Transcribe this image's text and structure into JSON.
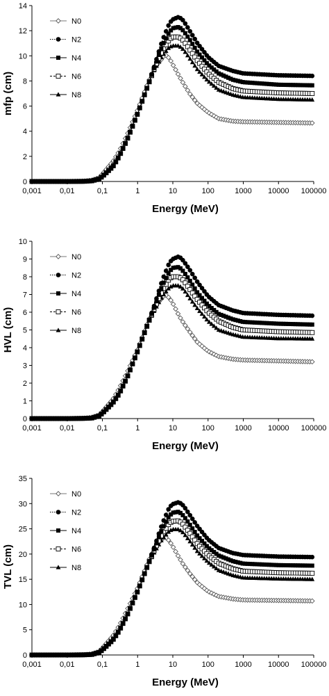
{
  "chart_data": [
    {
      "type": "scatter",
      "title": "",
      "xlabel": "Energy (MeV)",
      "ylabel": "mfp (cm)",
      "xscale": "log",
      "xlim": [
        0.001,
        100000
      ],
      "ylim": [
        0,
        14
      ],
      "xtick_labels": [
        "0,001",
        "0,01",
        "0,1",
        "1",
        "10",
        "100",
        "1000",
        "10000",
        "100000"
      ],
      "ytick_labels": [
        "0",
        "2",
        "4",
        "6",
        "8",
        "10",
        "12",
        "14"
      ],
      "yticks": [
        0,
        2,
        4,
        6,
        8,
        10,
        12,
        14
      ],
      "grid": false,
      "legend": "top-left",
      "series": [
        {
          "name": "N0",
          "marker": "open-diamond",
          "line": "solid",
          "x": [
            0.001,
            0.01,
            0.03,
            0.05,
            0.08,
            0.1,
            0.2,
            0.3,
            0.5,
            1,
            2,
            3,
            5,
            6,
            8,
            10,
            15,
            20,
            30,
            50,
            100,
            200,
            500,
            1000,
            10000,
            100000
          ],
          "y": [
            0,
            0,
            0.03,
            0.1,
            0.3,
            0.6,
            1.6,
            2.4,
            3.7,
            5.7,
            7.9,
            9.0,
            9.8,
            10.1,
            9.8,
            9.3,
            8.4,
            7.8,
            7.0,
            6.2,
            5.5,
            5.0,
            4.8,
            4.75,
            4.7,
            4.65
          ]
        },
        {
          "name": "N2",
          "marker": "filled-circle",
          "line": "dotted",
          "x": [
            0.001,
            0.01,
            0.03,
            0.05,
            0.08,
            0.1,
            0.2,
            0.3,
            0.5,
            1,
            2,
            3,
            5,
            8,
            10,
            15,
            20,
            30,
            50,
            100,
            200,
            500,
            1000,
            10000,
            100000
          ],
          "y": [
            0,
            0,
            0.01,
            0.05,
            0.2,
            0.4,
            1.2,
            2.0,
            3.3,
            5.4,
            7.7,
            9.2,
            11.2,
            12.6,
            12.9,
            13.1,
            12.8,
            12.0,
            11.0,
            9.9,
            9.2,
            8.8,
            8.6,
            8.45,
            8.4
          ]
        },
        {
          "name": "N4",
          "marker": "filled-square",
          "line": "solid",
          "x": [
            0.001,
            0.01,
            0.03,
            0.05,
            0.08,
            0.1,
            0.2,
            0.3,
            0.5,
            1,
            2,
            3,
            5,
            8,
            10,
            15,
            20,
            30,
            50,
            100,
            200,
            500,
            1000,
            10000,
            100000
          ],
          "y": [
            0,
            0,
            0.01,
            0.05,
            0.2,
            0.4,
            1.2,
            2.0,
            3.3,
            5.4,
            7.7,
            9.1,
            10.8,
            11.9,
            12.2,
            12.3,
            12.0,
            11.3,
            10.3,
            9.3,
            8.6,
            8.1,
            7.9,
            7.7,
            7.65
          ]
        },
        {
          "name": "N6",
          "marker": "open-square",
          "line": "dashed",
          "x": [
            0.001,
            0.01,
            0.03,
            0.05,
            0.08,
            0.1,
            0.2,
            0.3,
            0.5,
            1,
            2,
            3,
            5,
            8,
            10,
            15,
            20,
            30,
            50,
            100,
            200,
            500,
            1000,
            10000,
            100000
          ],
          "y": [
            0,
            0,
            0.01,
            0.05,
            0.2,
            0.4,
            1.2,
            2.0,
            3.3,
            5.4,
            7.7,
            9.0,
            10.4,
            11.3,
            11.5,
            11.5,
            11.2,
            10.5,
            9.6,
            8.6,
            7.9,
            7.4,
            7.2,
            7.05,
            7.0
          ]
        },
        {
          "name": "N8",
          "marker": "filled-triangle",
          "line": "solid",
          "x": [
            0.001,
            0.01,
            0.03,
            0.05,
            0.08,
            0.1,
            0.2,
            0.3,
            0.5,
            1,
            2,
            3,
            5,
            8,
            10,
            15,
            20,
            30,
            50,
            100,
            200,
            500,
            1000,
            10000,
            100000
          ],
          "y": [
            0,
            0,
            0.01,
            0.05,
            0.2,
            0.4,
            1.2,
            2.0,
            3.3,
            5.4,
            7.7,
            8.9,
            10.0,
            10.7,
            10.8,
            10.8,
            10.5,
            9.8,
            8.9,
            8.0,
            7.3,
            6.9,
            6.7,
            6.55,
            6.5
          ]
        }
      ]
    },
    {
      "type": "scatter",
      "title": "",
      "xlabel": "Energy (MeV)",
      "ylabel": "HVL (cm)",
      "xscale": "log",
      "xlim": [
        0.001,
        100000
      ],
      "ylim": [
        0,
        10
      ],
      "xtick_labels": [
        "0,001",
        "0,01",
        "0,1",
        "1",
        "10",
        "100",
        "1000",
        "10000",
        "100000"
      ],
      "ytick_labels": [
        "0",
        "1",
        "2",
        "3",
        "4",
        "5",
        "6",
        "7",
        "8",
        "9",
        "10"
      ],
      "yticks": [
        0,
        1,
        2,
        3,
        4,
        5,
        6,
        7,
        8,
        9,
        10
      ],
      "grid": false,
      "legend": "top-left",
      "series": [
        {
          "name": "N0",
          "marker": "open-diamond",
          "line": "solid",
          "x": [
            0.001,
            0.01,
            0.03,
            0.05,
            0.08,
            0.1,
            0.2,
            0.3,
            0.5,
            1,
            2,
            3,
            5,
            6,
            8,
            10,
            15,
            20,
            30,
            50,
            100,
            200,
            500,
            1000,
            10000,
            100000
          ],
          "y": [
            0,
            0,
            0.02,
            0.07,
            0.2,
            0.4,
            1.1,
            1.7,
            2.6,
            3.9,
            5.5,
            6.3,
            6.8,
            7.0,
            6.8,
            6.5,
            5.8,
            5.4,
            4.9,
            4.3,
            3.8,
            3.5,
            3.35,
            3.3,
            3.25,
            3.2
          ]
        },
        {
          "name": "N2",
          "marker": "filled-circle",
          "line": "dotted",
          "x": [
            0.001,
            0.01,
            0.03,
            0.05,
            0.08,
            0.1,
            0.2,
            0.3,
            0.5,
            1,
            2,
            3,
            5,
            8,
            10,
            15,
            20,
            30,
            50,
            100,
            200,
            500,
            1000,
            10000,
            100000
          ],
          "y": [
            0,
            0,
            0.01,
            0.03,
            0.15,
            0.3,
            0.9,
            1.4,
            2.3,
            3.8,
            5.4,
            6.4,
            7.8,
            8.8,
            9.0,
            9.15,
            8.9,
            8.4,
            7.7,
            6.9,
            6.4,
            6.1,
            5.95,
            5.85,
            5.8
          ]
        },
        {
          "name": "N4",
          "marker": "filled-square",
          "line": "solid",
          "x": [
            0.001,
            0.01,
            0.03,
            0.05,
            0.08,
            0.1,
            0.2,
            0.3,
            0.5,
            1,
            2,
            3,
            5,
            8,
            10,
            15,
            20,
            30,
            50,
            100,
            200,
            500,
            1000,
            10000,
            100000
          ],
          "y": [
            0,
            0,
            0.01,
            0.03,
            0.15,
            0.3,
            0.9,
            1.4,
            2.3,
            3.8,
            5.4,
            6.3,
            7.5,
            8.3,
            8.5,
            8.55,
            8.3,
            7.8,
            7.1,
            6.4,
            5.9,
            5.6,
            5.45,
            5.35,
            5.3
          ]
        },
        {
          "name": "N6",
          "marker": "open-square",
          "line": "dashed",
          "x": [
            0.001,
            0.01,
            0.03,
            0.05,
            0.08,
            0.1,
            0.2,
            0.3,
            0.5,
            1,
            2,
            3,
            5,
            8,
            10,
            15,
            20,
            30,
            50,
            100,
            200,
            500,
            1000,
            10000,
            100000
          ],
          "y": [
            0,
            0,
            0.01,
            0.03,
            0.15,
            0.3,
            0.9,
            1.4,
            2.3,
            3.8,
            5.4,
            6.2,
            7.2,
            7.9,
            8.0,
            8.0,
            7.8,
            7.3,
            6.7,
            6.0,
            5.5,
            5.15,
            5.0,
            4.9,
            4.85
          ]
        },
        {
          "name": "N8",
          "marker": "filled-triangle",
          "line": "solid",
          "x": [
            0.001,
            0.01,
            0.03,
            0.05,
            0.08,
            0.1,
            0.2,
            0.3,
            0.5,
            1,
            2,
            3,
            5,
            8,
            10,
            15,
            20,
            30,
            50,
            100,
            200,
            500,
            1000,
            10000,
            100000
          ],
          "y": [
            0,
            0,
            0.01,
            0.03,
            0.15,
            0.3,
            0.9,
            1.4,
            2.3,
            3.8,
            5.4,
            6.1,
            6.9,
            7.4,
            7.5,
            7.5,
            7.3,
            6.8,
            6.2,
            5.5,
            5.0,
            4.75,
            4.6,
            4.52,
            4.5
          ]
        }
      ]
    },
    {
      "type": "scatter",
      "title": "",
      "xlabel": "Energy (MeV)",
      "ylabel": "TVL (cm)",
      "xscale": "log",
      "xlim": [
        0.001,
        100000
      ],
      "ylim": [
        0,
        35
      ],
      "xtick_labels": [
        "0,001",
        "0,01",
        "0,1",
        "1",
        "10",
        "100",
        "1000",
        "10000",
        "100000"
      ],
      "ytick_labels": [
        "0",
        "5",
        "10",
        "15",
        "20",
        "25",
        "30",
        "35"
      ],
      "yticks": [
        0,
        5,
        10,
        15,
        20,
        25,
        30,
        35
      ],
      "grid": false,
      "legend": "top-left",
      "series": [
        {
          "name": "N0",
          "marker": "open-diamond",
          "line": "solid",
          "x": [
            0.001,
            0.01,
            0.03,
            0.05,
            0.08,
            0.1,
            0.2,
            0.3,
            0.5,
            1,
            2,
            3,
            5,
            6,
            8,
            10,
            15,
            20,
            30,
            50,
            100,
            200,
            500,
            1000,
            10000,
            100000
          ],
          "y": [
            0,
            0,
            0.05,
            0.2,
            0.7,
            1.4,
            3.8,
            5.8,
            8.9,
            13.3,
            18.5,
            21.3,
            23.0,
            23.4,
            22.6,
            21.5,
            19.3,
            17.9,
            16.2,
            14.3,
            12.6,
            11.6,
            11.1,
            10.9,
            10.8,
            10.7
          ]
        },
        {
          "name": "N2",
          "marker": "filled-circle",
          "line": "dotted",
          "x": [
            0.001,
            0.01,
            0.03,
            0.05,
            0.08,
            0.1,
            0.2,
            0.3,
            0.5,
            1,
            2,
            3,
            5,
            8,
            10,
            15,
            20,
            30,
            50,
            100,
            200,
            500,
            1000,
            10000,
            100000
          ],
          "y": [
            0,
            0,
            0.03,
            0.1,
            0.5,
            1.0,
            3.0,
            4.8,
            7.8,
            12.6,
            18.0,
            21.4,
            26.0,
            29.3,
            29.9,
            30.3,
            29.6,
            27.8,
            25.5,
            22.9,
            21.2,
            20.2,
            19.8,
            19.5,
            19.4
          ]
        },
        {
          "name": "N4",
          "marker": "filled-square",
          "line": "solid",
          "x": [
            0.001,
            0.01,
            0.03,
            0.05,
            0.08,
            0.1,
            0.2,
            0.3,
            0.5,
            1,
            2,
            3,
            5,
            8,
            10,
            15,
            20,
            30,
            50,
            100,
            200,
            500,
            1000,
            10000,
            100000
          ],
          "y": [
            0,
            0,
            0.03,
            0.1,
            0.5,
            1.0,
            3.0,
            4.8,
            7.8,
            12.6,
            18.0,
            21.1,
            25.0,
            27.6,
            28.2,
            28.4,
            27.6,
            25.9,
            23.6,
            21.3,
            19.7,
            18.6,
            18.1,
            17.8,
            17.7
          ]
        },
        {
          "name": "N6",
          "marker": "open-square",
          "line": "dashed",
          "x": [
            0.001,
            0.01,
            0.03,
            0.05,
            0.08,
            0.1,
            0.2,
            0.3,
            0.5,
            1,
            2,
            3,
            5,
            8,
            10,
            15,
            20,
            30,
            50,
            100,
            200,
            500,
            1000,
            10000,
            100000
          ],
          "y": [
            0,
            0,
            0.03,
            0.1,
            0.5,
            1.0,
            3.0,
            4.8,
            7.8,
            12.6,
            18.0,
            20.8,
            24.0,
            26.1,
            26.5,
            26.6,
            25.8,
            24.2,
            22.0,
            19.8,
            18.2,
            17.1,
            16.6,
            16.3,
            16.2
          ]
        },
        {
          "name": "N8",
          "marker": "filled-triangle",
          "line": "solid",
          "x": [
            0.001,
            0.01,
            0.03,
            0.05,
            0.08,
            0.1,
            0.2,
            0.3,
            0.5,
            1,
            2,
            3,
            5,
            8,
            10,
            15,
            20,
            30,
            50,
            100,
            200,
            500,
            1000,
            10000,
            100000
          ],
          "y": [
            0,
            0,
            0.03,
            0.1,
            0.5,
            1.0,
            3.0,
            4.8,
            7.8,
            12.6,
            18.0,
            20.4,
            23.0,
            24.6,
            24.9,
            24.9,
            24.2,
            22.6,
            20.5,
            18.4,
            16.8,
            15.8,
            15.3,
            15.1,
            15.0
          ]
        }
      ]
    }
  ]
}
